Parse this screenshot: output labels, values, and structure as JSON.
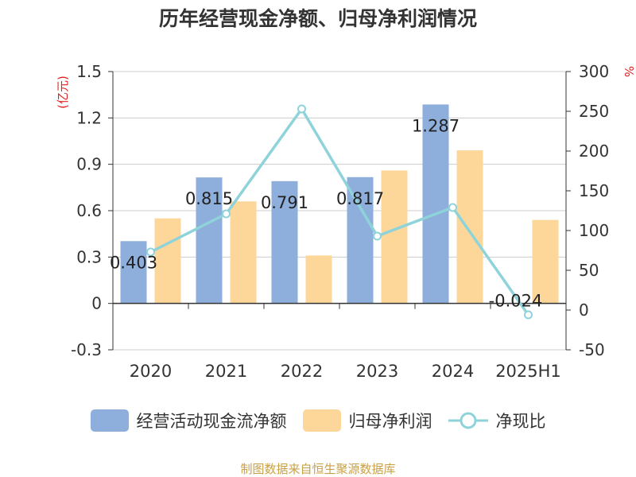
{
  "chart_data": {
    "type": "bar",
    "title": "历年经营现金净额、归母净利润情况",
    "categories": [
      "2020",
      "2021",
      "2022",
      "2023",
      "2024",
      "2025H1"
    ],
    "y_left_label": "(亿元)",
    "y_right_label": "%",
    "y_left_range": [
      -0.3,
      1.5
    ],
    "y_left_ticks": [
      "1.5",
      "1.2",
      "0.9",
      "0.6",
      "0.3",
      "0",
      "-0.3"
    ],
    "y_right_range": [
      -50,
      300
    ],
    "y_right_ticks": [
      "300",
      "250",
      "200",
      "150",
      "100",
      "50",
      "0",
      "-50"
    ],
    "grid": true,
    "legend_position": "bottom",
    "series": [
      {
        "name": "经营活动现金流净额",
        "kind": "bar",
        "axis": "left",
        "color": "#8eaedb",
        "values": [
          0.403,
          0.815,
          0.791,
          0.817,
          1.287,
          null
        ],
        "labels": [
          "0.403",
          "0.815",
          "0.791",
          "0.817",
          "1.287",
          ""
        ]
      },
      {
        "name": "归母净利润",
        "kind": "bar",
        "axis": "left",
        "color": "#fdd699",
        "values": [
          0.55,
          0.66,
          0.31,
          0.86,
          0.99,
          0.54
        ]
      },
      {
        "name": "净现比",
        "kind": "line",
        "axis": "right",
        "color": "#8fd3da",
        "values": [
          73,
          121,
          253,
          93,
          129,
          -6
        ]
      }
    ],
    "annotations": [
      "-0.024"
    ]
  },
  "source": "制图数据来自恒生聚源数据库"
}
